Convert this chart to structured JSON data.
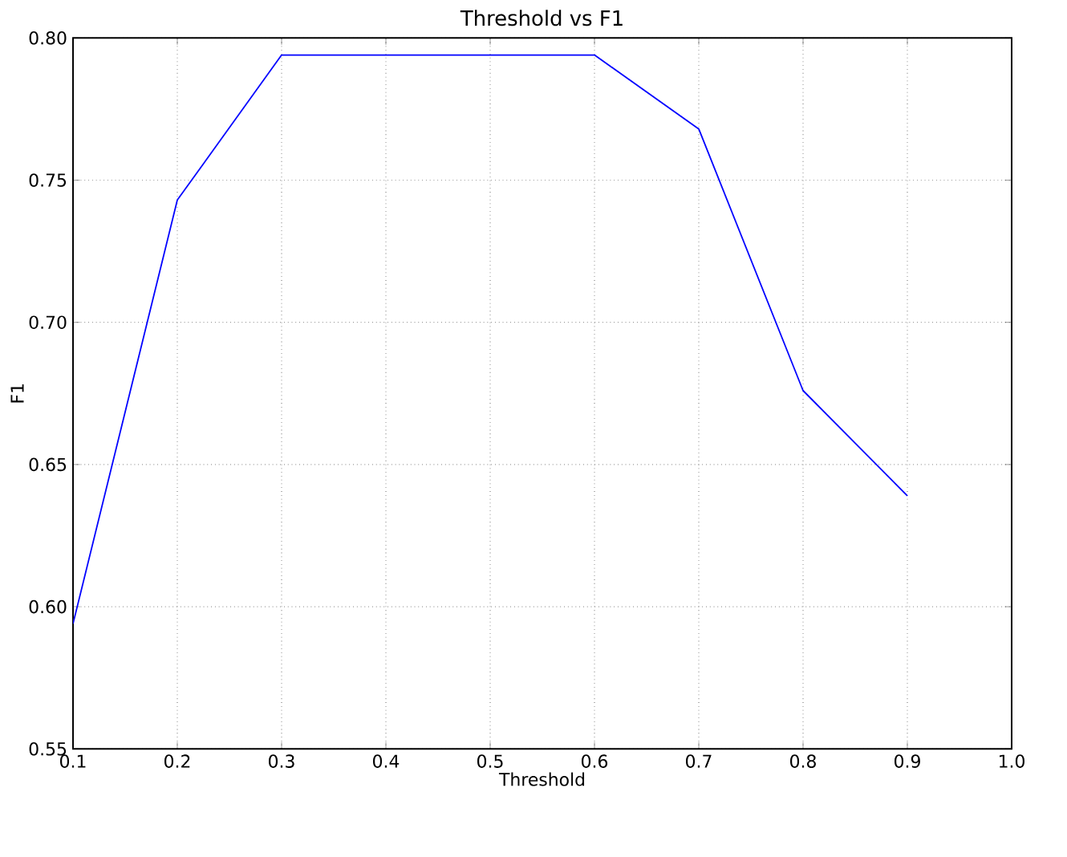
{
  "chart_data": {
    "type": "line",
    "title": "Threshold vs F1",
    "xlabel": "Threshold",
    "ylabel": "F1",
    "x": [
      0.1,
      0.2,
      0.3,
      0.4,
      0.5,
      0.6,
      0.7,
      0.8,
      0.9
    ],
    "series": [
      {
        "color": "#0000ff",
        "values": [
          0.594,
          0.743,
          0.794,
          0.794,
          0.794,
          0.794,
          0.768,
          0.676,
          0.639
        ]
      }
    ],
    "xlim": [
      0.1,
      1.0
    ],
    "xticks": [
      0.1,
      0.2,
      0.3,
      0.4,
      0.5,
      0.6,
      0.7,
      0.8,
      0.9,
      {
        "value": 1.0,
        "label": "1.0"
      }
    ],
    "ylim": [
      0.55,
      0.8
    ],
    "yticks": [
      0.55,
      {
        "value": 0.6,
        "label": "0.60"
      },
      0.65,
      {
        "value": 0.7,
        "label": "0.70"
      },
      0.75,
      {
        "value": 0.8,
        "label": "0.80"
      }
    ],
    "grid": true,
    "marker": "none",
    "line_style": "solid"
  }
}
